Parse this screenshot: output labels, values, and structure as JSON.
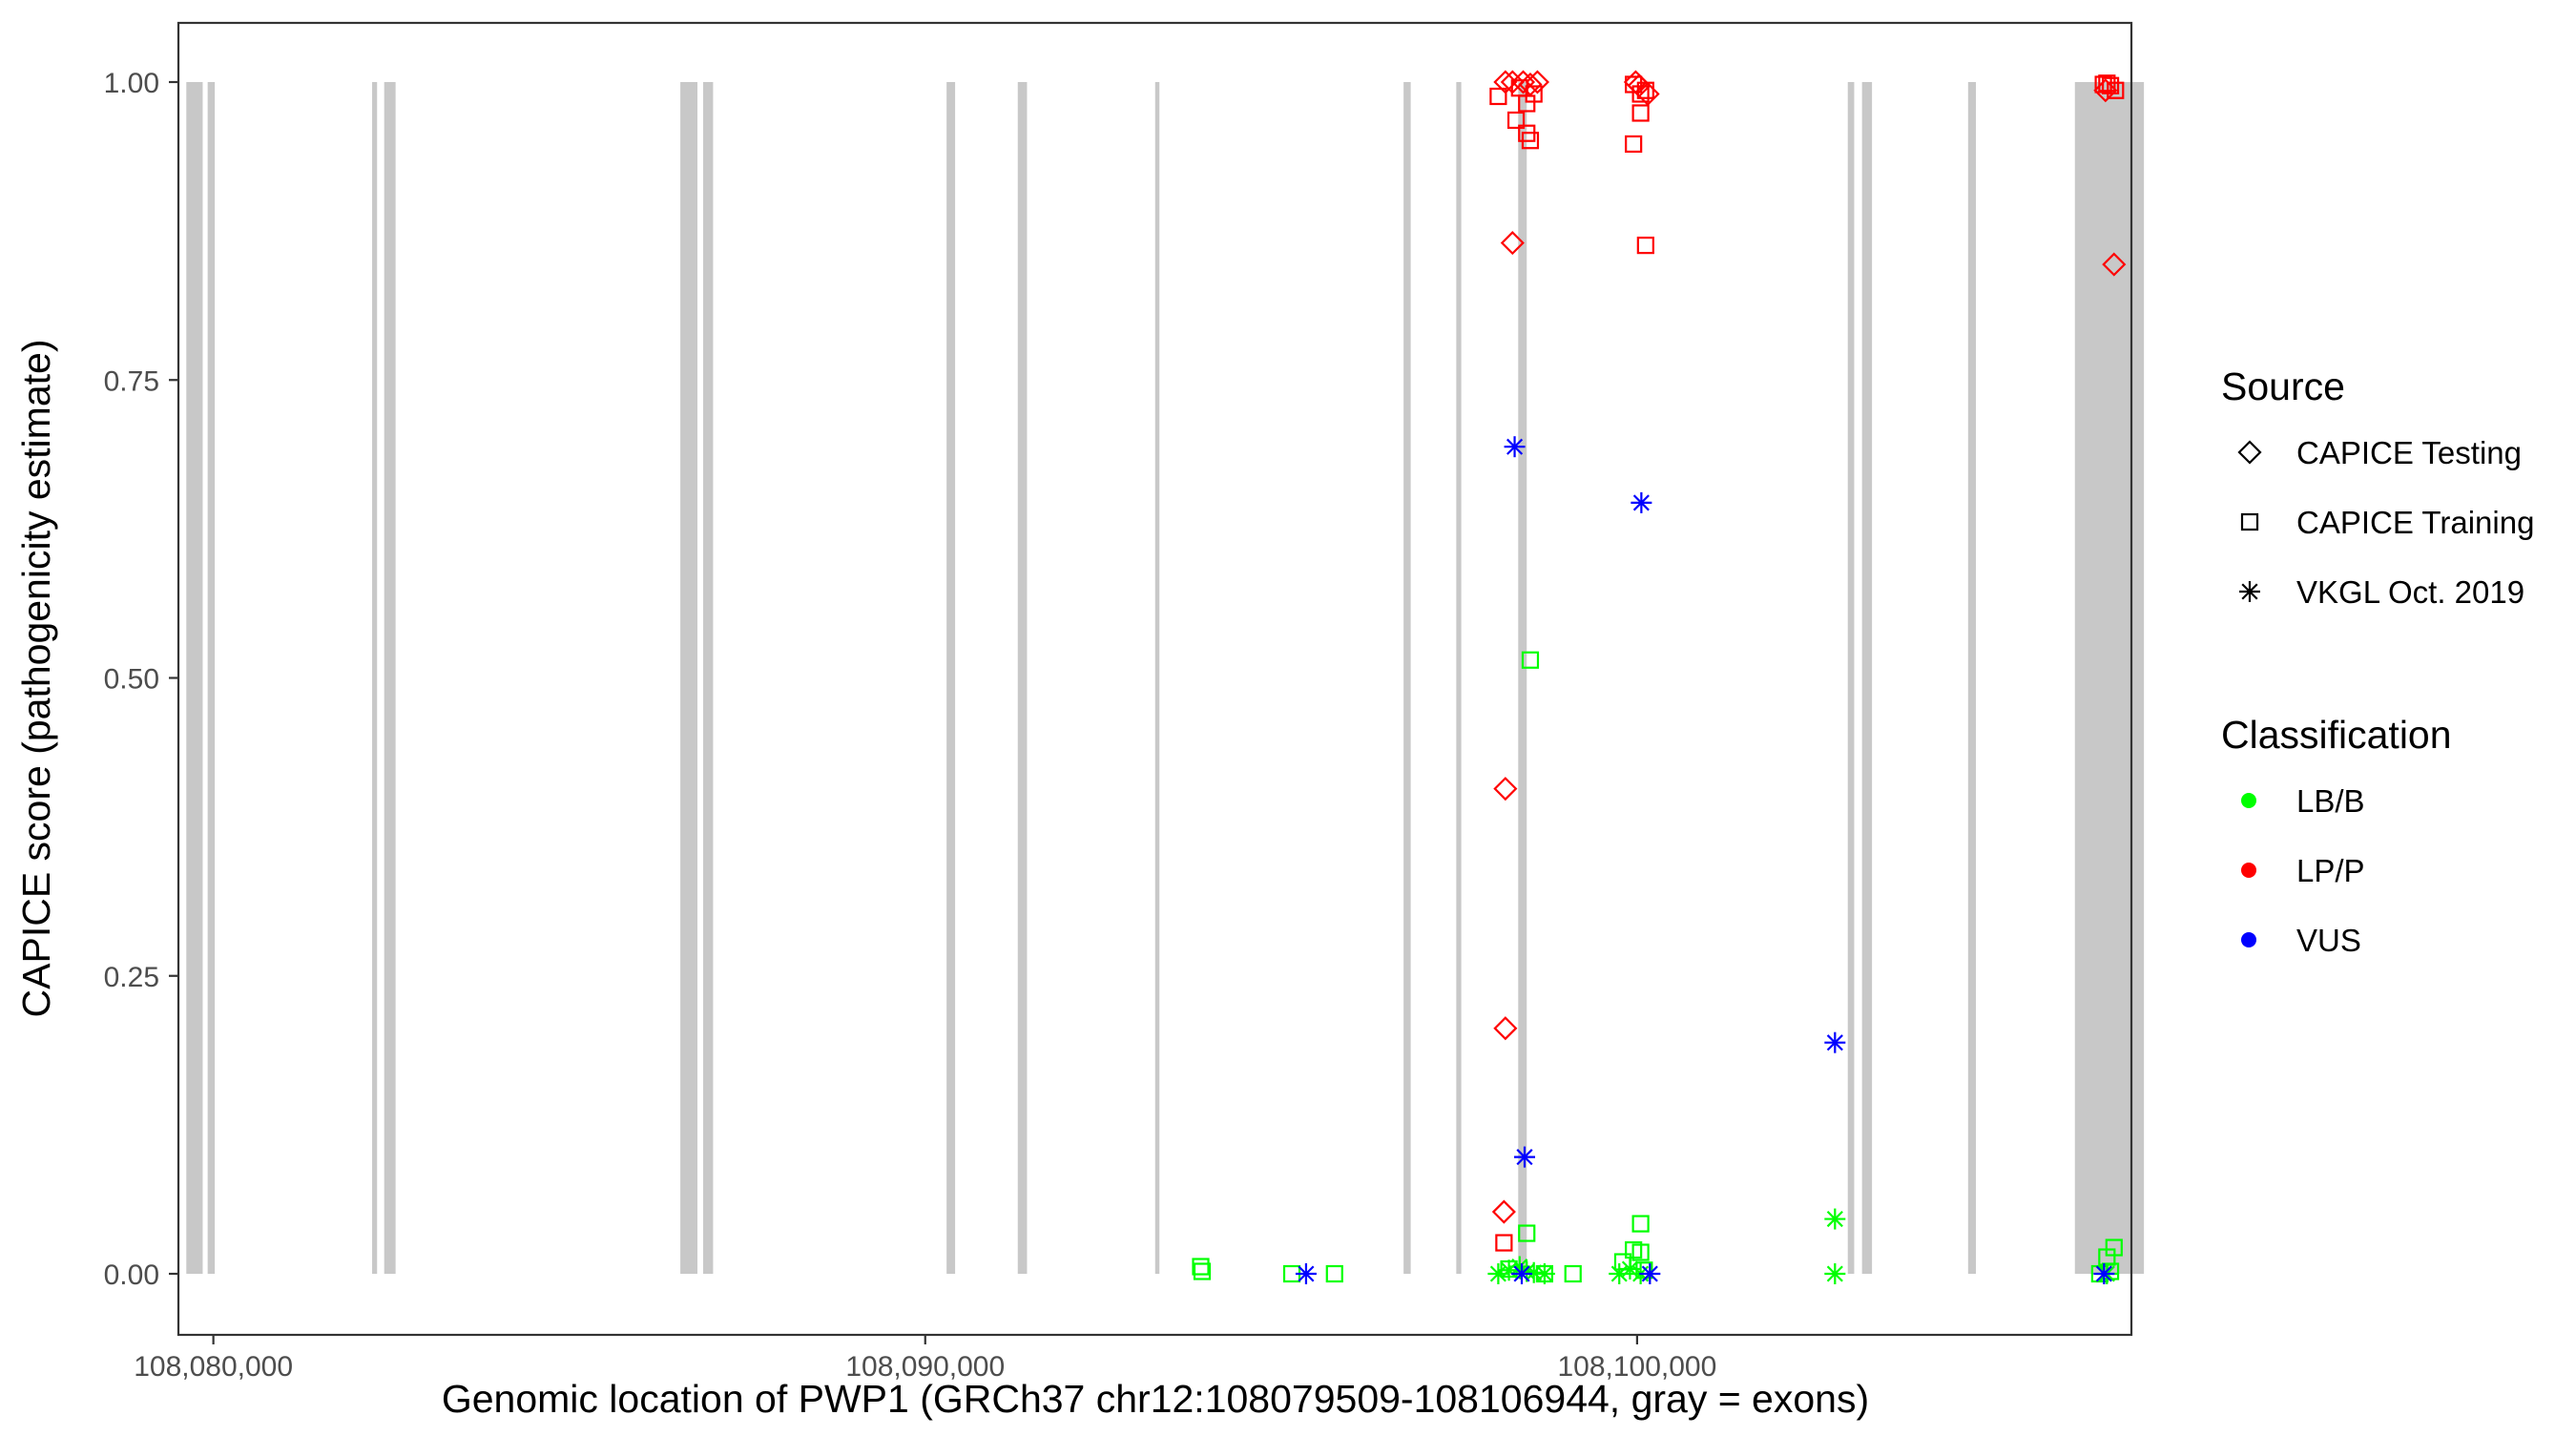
{
  "chart_data": {
    "type": "scatter",
    "xlabel": "Genomic location of PWP1 (GRCh37 chr12:108079509-108106944, gray = exons)",
    "ylabel": "CAPICE score (pathogenicity estimate)",
    "xlim": [
      108079509,
      108106944
    ],
    "ylim": [
      0,
      1
    ],
    "x_ticks": [
      108080000,
      108090000,
      108100000
    ],
    "x_tick_labels": [
      "108,080,000",
      "108,090,000",
      "108,100,000"
    ],
    "y_ticks": [
      0,
      0.25,
      0.5,
      0.75,
      1
    ],
    "y_tick_labels": [
      "0.00",
      "0.25",
      "0.50",
      "0.75",
      "1.00"
    ],
    "grid": false,
    "exons": [
      [
        108079620,
        108079850
      ],
      [
        108079920,
        108080020
      ],
      [
        108082230,
        108082300
      ],
      [
        108082400,
        108082560
      ],
      [
        108086560,
        108086800
      ],
      [
        108086880,
        108087020
      ],
      [
        108090300,
        108090420
      ],
      [
        108091300,
        108091430
      ],
      [
        108093230,
        108093290
      ],
      [
        108096720,
        108096820
      ],
      [
        108097460,
        108097530
      ],
      [
        108098330,
        108098450
      ],
      [
        108102960,
        108103050
      ],
      [
        108103160,
        108103300
      ],
      [
        108104650,
        108104760
      ],
      [
        108106150,
        108107120
      ]
    ],
    "legend": {
      "position": "right",
      "shape_title": "Source",
      "shape_items": [
        {
          "label": "CAPICE Testing",
          "shape": "diamond"
        },
        {
          "label": "CAPICE Training",
          "shape": "square"
        },
        {
          "label": "VKGL Oct. 2019",
          "shape": "asterisk"
        }
      ],
      "color_title": "Classification",
      "color_items": [
        {
          "label": "LB/B",
          "color": "#00ff00"
        },
        {
          "label": "LP/P",
          "color": "#ff0000"
        },
        {
          "label": "VUS",
          "color": "#0000ff"
        }
      ]
    },
    "series": [
      {
        "source": "CAPICE Testing",
        "classification": "LP/P",
        "x": [
          108098150,
          108098250,
          108098400,
          108098500,
          108098600,
          108099980,
          108100030,
          108100150,
          108098250,
          108098150,
          108098150,
          108098130,
          108106580,
          108106700
        ],
        "y": [
          1.0,
          1.0,
          1.0,
          0.998,
          1.0,
          1.0,
          0.997,
          0.99,
          0.865,
          0.407,
          0.206,
          0.052,
          0.993,
          0.847
        ]
      },
      {
        "source": "CAPICE Training",
        "classification": "LP/P",
        "x": [
          108098050,
          108098350,
          108098450,
          108098550,
          108098300,
          108098450,
          108098500,
          108099950,
          108100050,
          108100120,
          108099950,
          108100050,
          108100120,
          108098130,
          108106550,
          108106650,
          108106720,
          108106600
        ],
        "y": [
          0.988,
          0.995,
          0.982,
          0.99,
          0.968,
          0.957,
          0.951,
          0.998,
          0.99,
          0.993,
          0.948,
          0.974,
          0.863,
          0.026,
          0.998,
          0.997,
          0.993,
          0.999
        ]
      },
      {
        "source": "CAPICE Training",
        "classification": "LB/B",
        "x": [
          108093870,
          108093890,
          108095150,
          108095750,
          108098500,
          108098450,
          108098200,
          108098700,
          108099100,
          108099800,
          108099950,
          108100050,
          108100050,
          108100100,
          108106500,
          108106600,
          108106700,
          108106650
        ],
        "y": [
          0.006,
          0.002,
          0.0,
          0.0,
          0.515,
          0.034,
          0.004,
          0.0,
          0.0,
          0.01,
          0.02,
          0.042,
          0.018,
          0.003,
          0.0,
          0.014,
          0.022,
          0.002
        ]
      },
      {
        "source": "VKGL Oct. 2019",
        "classification": "LB/B",
        "x": [
          108098050,
          108098200,
          108098350,
          108098450,
          108098550,
          108098700,
          108099750,
          108099900,
          108100050,
          108102780,
          108102780,
          108106600
        ],
        "y": [
          0.0,
          0.003,
          0.006,
          0.002,
          0.001,
          0.0,
          0.0,
          0.004,
          0.0,
          0.046,
          0.0,
          0.0
        ]
      },
      {
        "source": "VKGL Oct. 2019",
        "classification": "VUS",
        "x": [
          108098280,
          108100060,
          108098420,
          108102780,
          108095350,
          108098380,
          108100180,
          108106560
        ],
        "y": [
          0.694,
          0.647,
          0.098,
          0.194,
          0.0,
          0.0,
          0.0,
          0.0
        ]
      }
    ]
  }
}
